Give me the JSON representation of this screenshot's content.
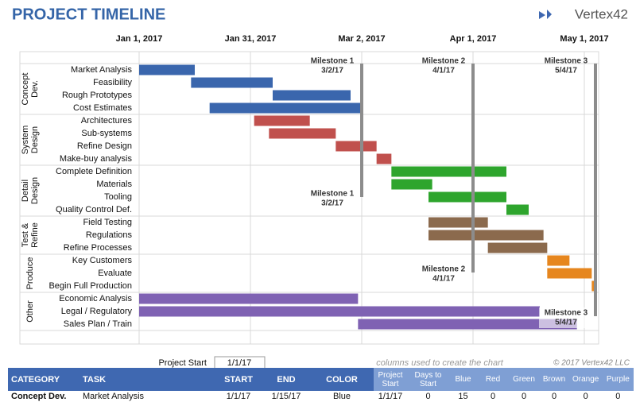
{
  "logo": "Vertex42",
  "chart_data": {
    "type": "gantt",
    "title": "PROJECT TIMELINE",
    "xlim": [
      0,
      124
    ],
    "xticks": [
      {
        "value": 0,
        "label": "Jan 1, 2017"
      },
      {
        "value": 30,
        "label": "Jan 31, 2017"
      },
      {
        "value": 60,
        "label": "Mar 2, 2017"
      },
      {
        "value": 90,
        "label": "Apr 1, 2017"
      },
      {
        "value": 120,
        "label": "May 1, 2017"
      }
    ],
    "grid": true,
    "groups": [
      {
        "name": "Concept Dev.",
        "color": "#3a66ad",
        "tasks": [
          "Market Analysis",
          "Feasibility",
          "Rough Prototypes",
          "Cost Estimates"
        ],
        "starts": [
          0,
          14,
          36,
          19
        ],
        "durations": [
          15,
          22,
          21,
          41
        ]
      },
      {
        "name": "System Design",
        "color": "#c0504d",
        "tasks": [
          "Architectures",
          "Sub-systems",
          "Refine Design",
          "Make-buy analysis"
        ],
        "starts": [
          31,
          35,
          53,
          64
        ],
        "durations": [
          15,
          18,
          11,
          4
        ]
      },
      {
        "name": "Detail Design",
        "color": "#2ea52d",
        "tasks": [
          "Complete Definition",
          "Materials",
          "Tooling",
          "Quality Control Def."
        ],
        "starts": [
          68,
          68,
          78,
          99
        ],
        "durations": [
          31,
          11,
          21,
          6
        ]
      },
      {
        "name": "Test & Refine",
        "color": "#8b6a4d",
        "tasks": [
          "Field Testing",
          "Regulations",
          "Refine Processes"
        ],
        "starts": [
          78,
          78,
          94
        ],
        "durations": [
          16,
          31,
          16
        ]
      },
      {
        "name": "Produce",
        "color": "#e6861e",
        "tasks": [
          "Key Customers",
          "Evaluate",
          "Begin Full Production"
        ],
        "starts": [
          110,
          110,
          122
        ],
        "durations": [
          6,
          12,
          1
        ]
      },
      {
        "name": "Other",
        "color": "#7f62b3",
        "tasks": [
          "Economic Analysis",
          "Legal / Regulatory",
          "Sales Plan / Train"
        ],
        "starts": [
          0,
          0,
          59
        ],
        "durations": [
          59,
          108,
          59
        ]
      }
    ],
    "milestones": [
      {
        "label": "Milestone 1",
        "date": "3/2/17",
        "x": 60
      },
      {
        "label": "Milestone 2",
        "date": "4/1/17",
        "x": 90
      },
      {
        "label": "Milestone 3",
        "date": "5/4/17",
        "x": 123
      }
    ]
  },
  "project_start": {
    "label": "Project Start",
    "value": "1/1/17"
  },
  "note": "columns used to create the chart",
  "copyright": "© 2017 Vertex42 LLC",
  "table": {
    "header": [
      "CATEGORY",
      "TASK",
      "START",
      "END",
      "COLOR",
      "Project Start",
      "Days to Start",
      "Blue",
      "Red",
      "Green",
      "Brown",
      "Orange",
      "Purple"
    ],
    "rows": [
      [
        "Concept Dev.",
        "Market Analysis",
        "1/1/17",
        "1/15/17",
        "Blue",
        "1/1/17",
        0,
        15,
        0,
        0,
        0,
        0,
        0
      ]
    ]
  }
}
